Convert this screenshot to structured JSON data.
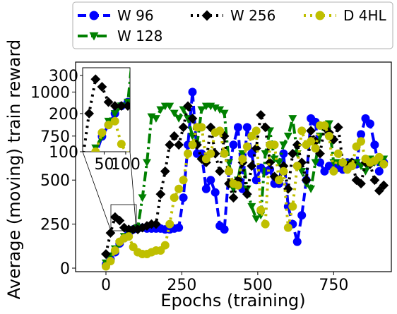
{
  "chart_data": {
    "type": "line",
    "title": "",
    "xlabel": "Epochs (training)",
    "ylabel": "Average (moving) train reward",
    "xlim": [
      -100,
      940
    ],
    "ylim": [
      -20,
      1170
    ],
    "xticks": [
      0,
      250,
      500,
      750
    ],
    "yticks": [
      0,
      250,
      500,
      750,
      1000
    ],
    "grid": false,
    "legend": {
      "placement": "top, outside, 3 columns"
    },
    "series": [
      {
        "name": "W 96",
        "color": "#0000ff",
        "marker": "circle",
        "dash": "dashed",
        "x": [
          0,
          15,
          30,
          45,
          60,
          75,
          90,
          105,
          120,
          135,
          150,
          165,
          180,
          195,
          210,
          225,
          240,
          255,
          270,
          285,
          300,
          315,
          330,
          345,
          360,
          375,
          390,
          405,
          420,
          435,
          450,
          465,
          480,
          495,
          510,
          525,
          540,
          555,
          570,
          585,
          600,
          615,
          630,
          645,
          660,
          675,
          690,
          705,
          720,
          735,
          750,
          765,
          780,
          795,
          810,
          825,
          840,
          855,
          870,
          885,
          900,
          915
        ],
        "y": [
          20,
          50,
          90,
          140,
          170,
          200,
          220,
          230,
          230,
          225,
          225,
          225,
          225,
          220,
          220,
          225,
          230,
          400,
          700,
          1000,
          650,
          650,
          450,
          500,
          430,
          240,
          220,
          550,
          700,
          800,
          450,
          800,
          650,
          500,
          570,
          550,
          560,
          480,
          480,
          650,
          350,
          250,
          150,
          300,
          500,
          850,
          830,
          600,
          550,
          580,
          580,
          570,
          560,
          600,
          600,
          590,
          760,
          850,
          820,
          700,
          550,
          600
        ]
      },
      {
        "name": "W 128",
        "color": "#008000",
        "marker": "triangle-down",
        "dash": "dashdot",
        "x": [
          0,
          15,
          30,
          45,
          60,
          75,
          90,
          105,
          120,
          135,
          150,
          165,
          180,
          195,
          210,
          225,
          240,
          255,
          270,
          285,
          300,
          315,
          330,
          345,
          360,
          375,
          390,
          405,
          420,
          435,
          450,
          465,
          480,
          495,
          510,
          525,
          540,
          555,
          570,
          585,
          600,
          615,
          630,
          645,
          660,
          675,
          690,
          705,
          720,
          735,
          750,
          765,
          780,
          795,
          810,
          825,
          840,
          855,
          870,
          885,
          900,
          915
        ],
        "y": [
          30,
          70,
          110,
          140,
          180,
          200,
          220,
          230,
          400,
          600,
          860,
          850,
          900,
          920,
          920,
          880,
          850,
          900,
          850,
          750,
          700,
          900,
          920,
          920,
          910,
          900,
          880,
          600,
          450,
          500,
          650,
          450,
          350,
          280,
          300,
          650,
          780,
          620,
          600,
          700,
          750,
          850,
          650,
          550,
          480,
          450,
          600,
          750,
          800,
          820,
          600,
          600,
          600,
          590,
          600,
          600,
          580,
          550,
          620,
          600,
          600,
          620
        ]
      },
      {
        "name": "W 256",
        "color": "#000000",
        "marker": "diamond",
        "dash": "dotted",
        "x": [
          0,
          15,
          30,
          45,
          60,
          75,
          90,
          105,
          120,
          135,
          150,
          165,
          180,
          195,
          210,
          225,
          240,
          255,
          270,
          285,
          300,
          315,
          330,
          345,
          360,
          375,
          390,
          405,
          420,
          435,
          450,
          465,
          480,
          495,
          510,
          525,
          540,
          555,
          570,
          585,
          600,
          615,
          630,
          645,
          660,
          675,
          690,
          705,
          720,
          735,
          750,
          765,
          780,
          795,
          810,
          825,
          840,
          855,
          870,
          885,
          900,
          915
        ],
        "y": [
          80,
          200,
          290,
          270,
          230,
          220,
          220,
          220,
          230,
          240,
          250,
          250,
          420,
          550,
          700,
          750,
          700,
          800,
          920,
          850,
          700,
          620,
          600,
          800,
          650,
          550,
          750,
          480,
          400,
          500,
          600,
          420,
          580,
          680,
          870,
          800,
          600,
          520,
          500,
          580,
          450,
          650,
          700,
          600,
          500,
          780,
          720,
          650,
          800,
          770,
          730,
          800,
          600,
          580,
          600,
          500,
          480,
          600,
          590,
          500,
          440,
          470
        ]
      },
      {
        "name": "D 4HL",
        "color": "#bfbf00",
        "marker": "circle",
        "dash": "dotted",
        "x": [
          0,
          15,
          30,
          45,
          60,
          75,
          90,
          105,
          120,
          135,
          150,
          165,
          180,
          195,
          210,
          225,
          240,
          255,
          270,
          285,
          300,
          315,
          330,
          345,
          360,
          375,
          390,
          405,
          420,
          435,
          450,
          465,
          480,
          495,
          510,
          525,
          540,
          555,
          570,
          585,
          600,
          615,
          630,
          645,
          660,
          675,
          690,
          705,
          720,
          735,
          750,
          765,
          780,
          795,
          810,
          825,
          840,
          855,
          870,
          885,
          900,
          915
        ],
        "y": [
          10,
          40,
          100,
          150,
          170,
          180,
          120,
          90,
          80,
          80,
          90,
          100,
          100,
          130,
          250,
          400,
          450,
          500,
          650,
          700,
          800,
          800,
          620,
          650,
          770,
          780,
          650,
          550,
          480,
          470,
          620,
          690,
          750,
          780,
          330,
          250,
          700,
          700,
          500,
          550,
          230,
          350,
          580,
          780,
          700,
          720,
          680,
          810,
          810,
          750,
          550,
          650,
          600,
          560,
          580,
          690,
          720,
          620,
          600,
          610,
          630,
          590
        ]
      }
    ],
    "inset": {
      "xlim": [
        0,
        110
      ],
      "ylim": [
        100,
        320
      ],
      "xticks": [
        50,
        100
      ],
      "yticks": [
        100,
        200,
        300
      ]
    }
  }
}
